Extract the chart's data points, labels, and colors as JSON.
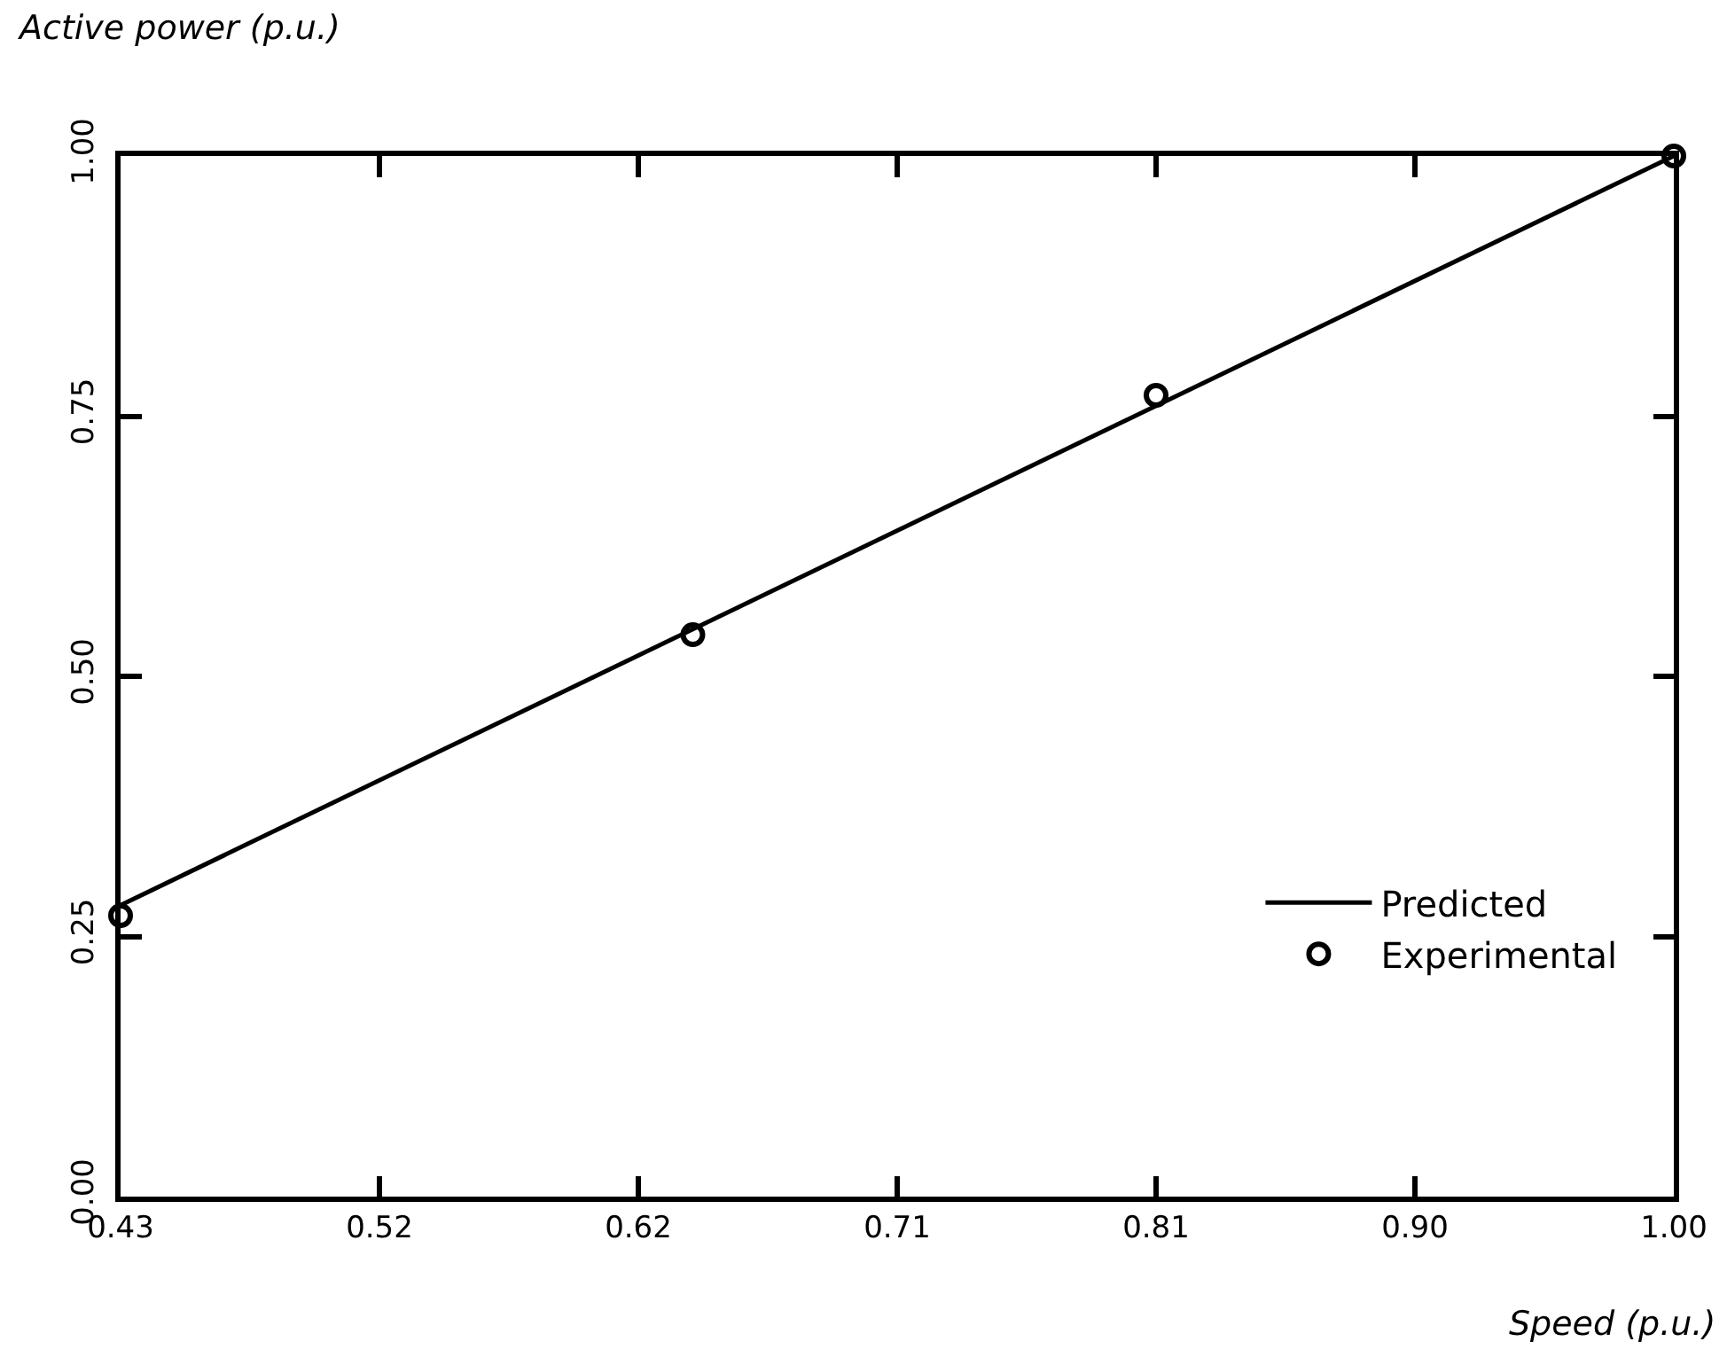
{
  "chart_data": {
    "type": "line",
    "xlabel": "Speed (p.u.)",
    "ylabel": "Active power (p.u.)",
    "xlim": [
      0.43,
      1.0
    ],
    "xticks": [
      {
        "value": 0.43,
        "label": "0.43"
      },
      {
        "value": 0.525,
        "label": "0.52"
      },
      {
        "value": 0.62,
        "label": "0.62"
      },
      {
        "value": 0.715,
        "label": "0.71"
      },
      {
        "value": 0.81,
        "label": "0.81"
      },
      {
        "value": 0.905,
        "label": "0.90"
      },
      {
        "value": 1.0,
        "label": "1.00"
      }
    ],
    "ylim": [
      0,
      1.0
    ],
    "yticks": [
      {
        "value": 0,
        "label": "0.00"
      },
      {
        "value": 0.25,
        "label": "0.25"
      },
      {
        "value": 0.5,
        "label": "0.50"
      },
      {
        "value": 0.75,
        "label": "0.75"
      },
      {
        "value": 1.0,
        "label": "1.00"
      }
    ],
    "legend": "bottom right",
    "series": [
      {
        "name": "Predicted",
        "color": "#000000",
        "marker": "none",
        "line_style": "solid",
        "x": [
          0.43,
          1.0
        ],
        "values": [
          0.28,
          1.0
        ]
      },
      {
        "name": "Experimental",
        "type": "scatter",
        "color": "#000000",
        "marker": "circle",
        "x": [
          0.43,
          0.64,
          0.81,
          1.0
        ],
        "values": [
          0.27,
          0.54,
          0.77,
          1.0
        ]
      }
    ]
  }
}
